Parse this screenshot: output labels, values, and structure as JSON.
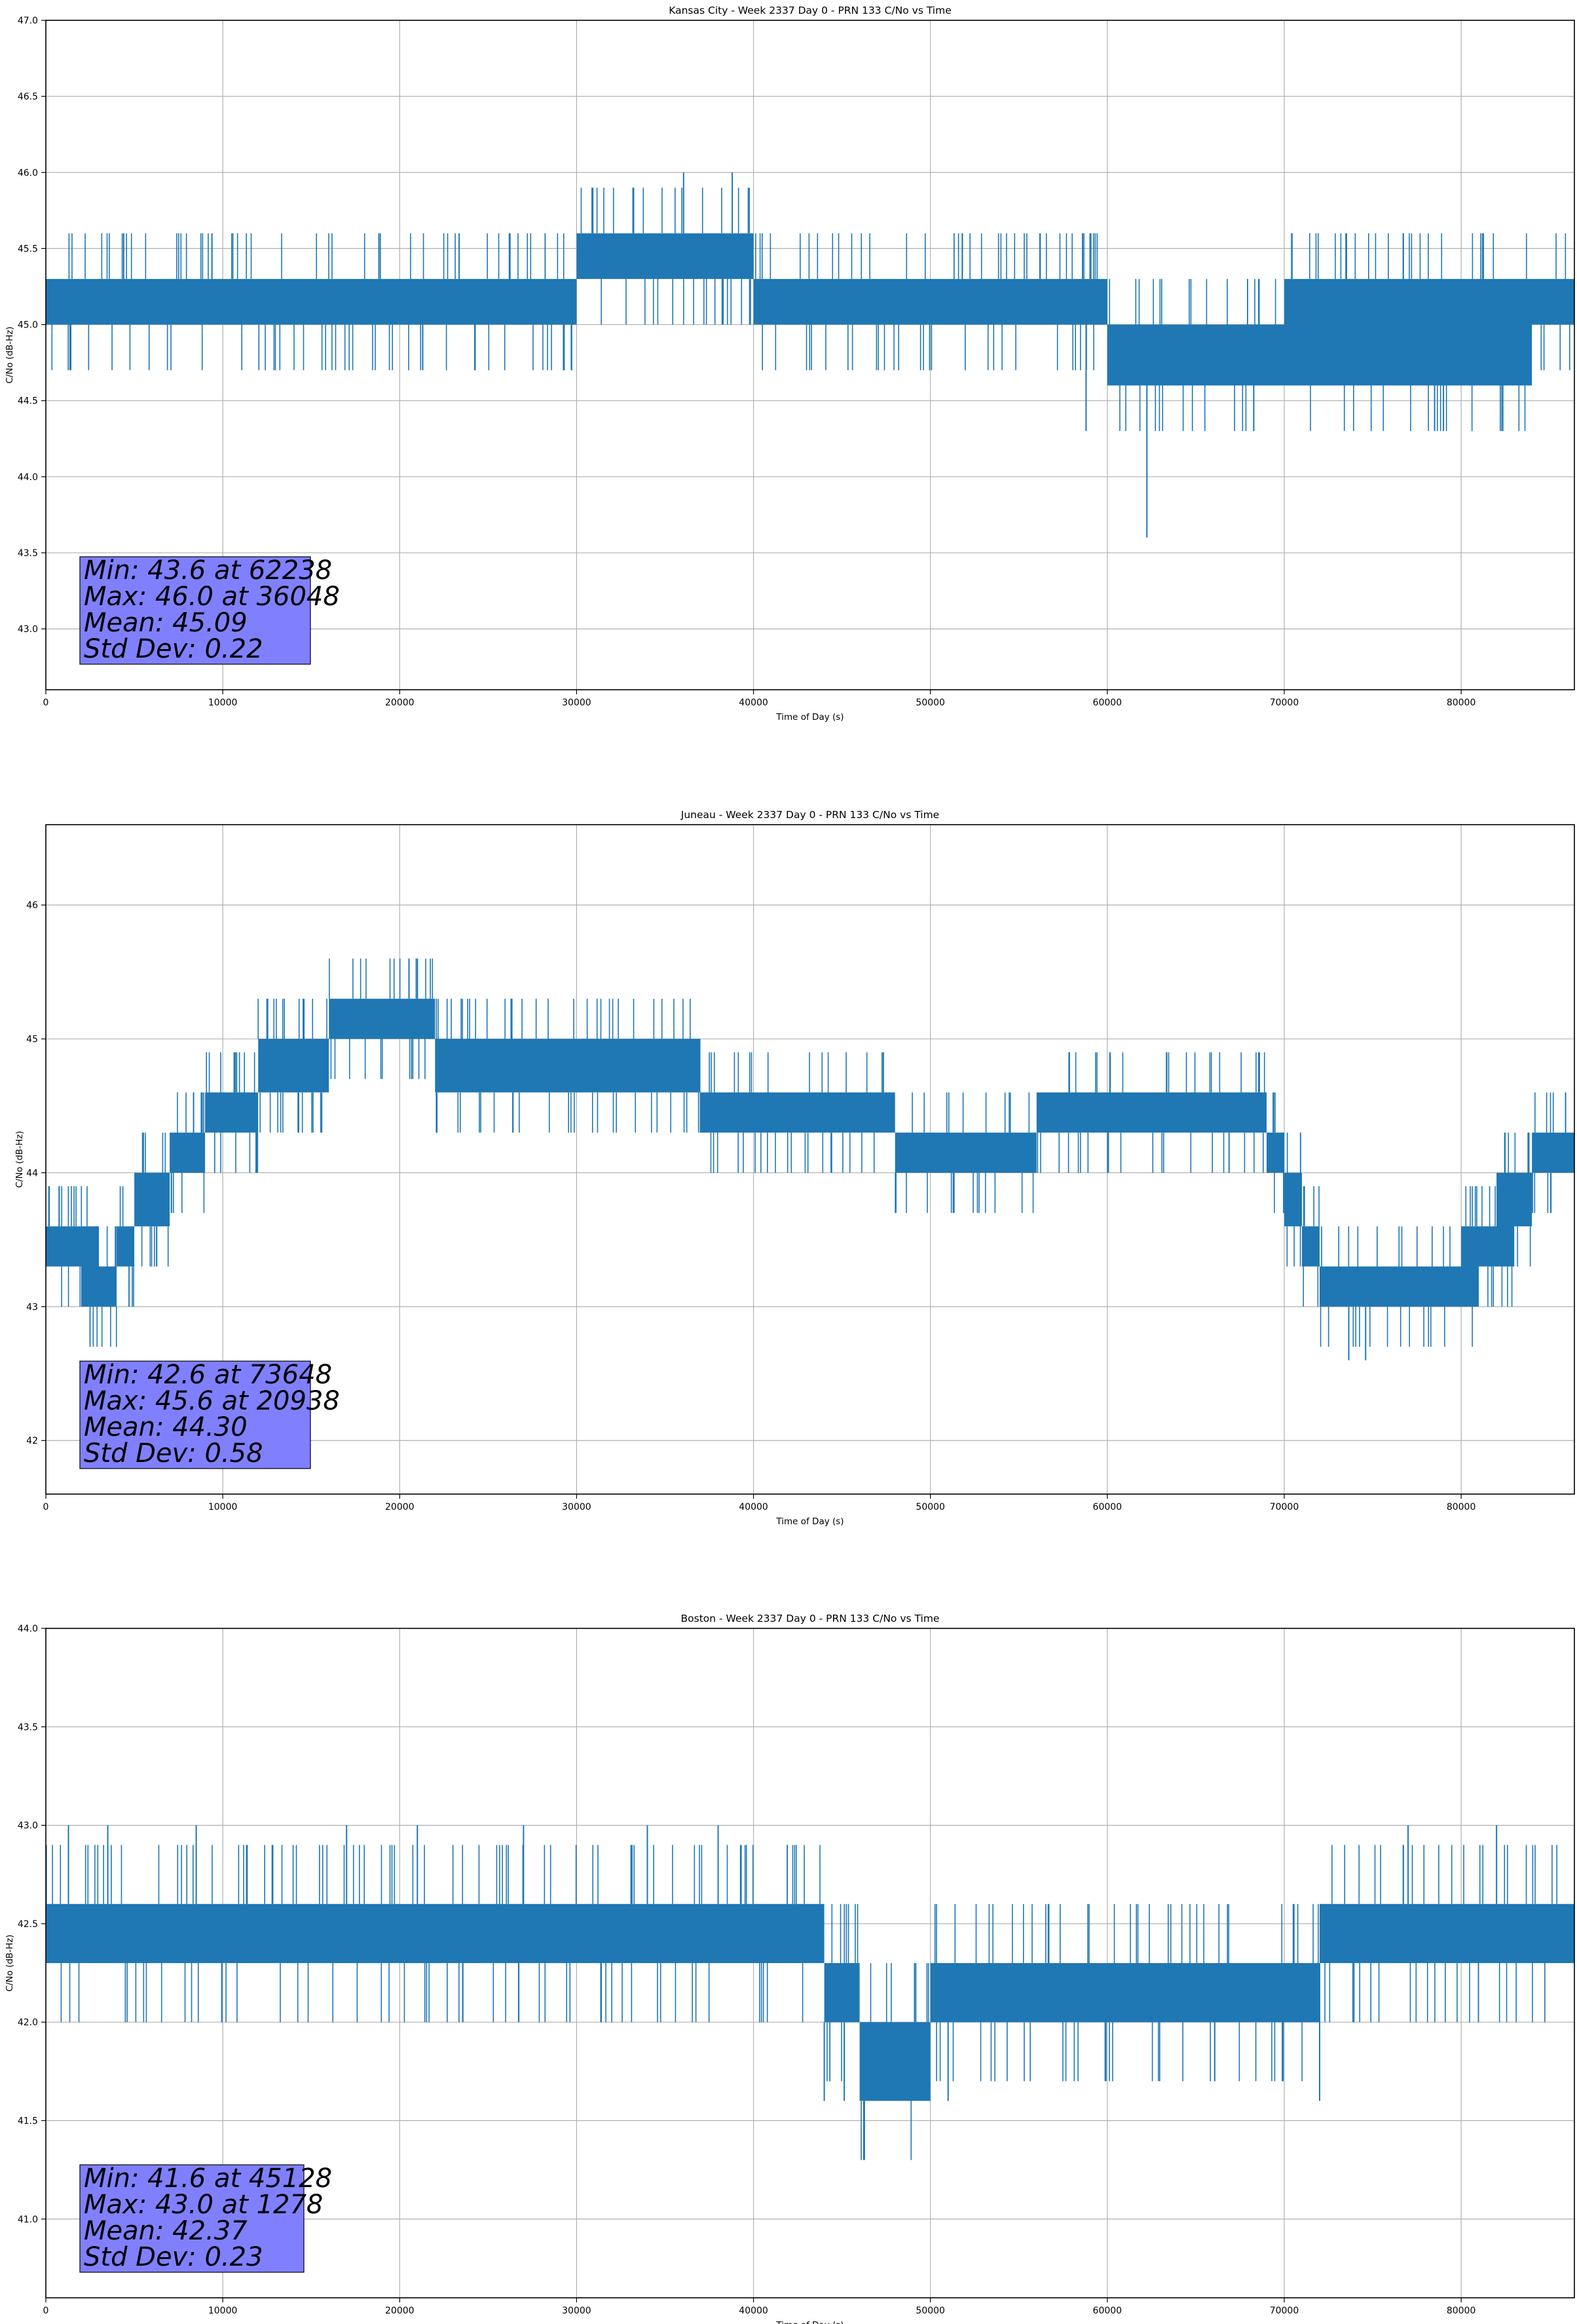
{
  "chart_data": [
    {
      "type": "line",
      "title": "Kansas City - Week 2337 Day 0 - PRN 133 C/No vs Time",
      "xlabel": "Time of Day (s)",
      "ylabel": "C/No (dB-Hz)",
      "xlim": [
        0,
        86400
      ],
      "ylim": [
        42.6,
        47.0
      ],
      "xticks": [
        0,
        10000,
        20000,
        30000,
        40000,
        50000,
        60000,
        70000,
        80000
      ],
      "yticks": [
        43.0,
        43.5,
        44.0,
        44.5,
        45.0,
        45.5,
        46.0,
        46.5,
        47.0
      ],
      "ytick_decimals": 1,
      "grid": true,
      "color": "#1f77b4",
      "series": [
        {
          "x": [
            0,
            2000,
            4000,
            6000,
            8000,
            10000,
            12000,
            14000,
            16000,
            18000,
            20000,
            22000,
            24000,
            26000,
            28000,
            29000,
            30000,
            32000,
            34000,
            36000,
            38000,
            39000,
            40000,
            42000,
            44000,
            46000,
            48000,
            50000,
            52000,
            54000,
            56000,
            58000,
            59000,
            60000,
            62000,
            64000,
            66000,
            68000,
            70000,
            72000,
            74000,
            76000,
            78000,
            80000,
            82000,
            84000,
            86400
          ],
          "band_low": [
            45.0,
            45.0,
            45.0,
            45.0,
            45.0,
            45.0,
            45.0,
            45.0,
            45.0,
            45.0,
            45.0,
            45.0,
            45.0,
            45.0,
            45.0,
            45.0,
            45.3,
            45.3,
            45.3,
            45.3,
            45.3,
            45.3,
            45.0,
            45.0,
            45.0,
            45.0,
            45.0,
            45.0,
            45.0,
            45.0,
            45.0,
            45.0,
            45.0,
            44.6,
            44.6,
            44.6,
            44.6,
            44.6,
            44.6,
            44.6,
            44.6,
            44.6,
            44.6,
            44.6,
            44.6,
            45.0,
            45.0
          ],
          "band_high": [
            45.3,
            45.3,
            45.3,
            45.3,
            45.3,
            45.3,
            45.3,
            45.3,
            45.3,
            45.3,
            45.3,
            45.3,
            45.3,
            45.3,
            45.3,
            45.3,
            45.6,
            45.6,
            45.6,
            45.6,
            45.6,
            45.6,
            45.3,
            45.3,
            45.3,
            45.3,
            45.3,
            45.3,
            45.3,
            45.3,
            45.3,
            45.3,
            45.3,
            45.0,
            45.0,
            45.0,
            45.0,
            45.0,
            45.3,
            45.3,
            45.3,
            45.3,
            45.3,
            45.3,
            45.3,
            45.3,
            45.3
          ]
        }
      ],
      "extremes": [
        [
          4400,
          45.6
        ],
        [
          18900,
          45.6
        ],
        [
          36048,
          46.0
        ],
        [
          38800,
          46.0
        ],
        [
          51800,
          45.6
        ],
        [
          58600,
          45.6
        ],
        [
          58800,
          44.3
        ],
        [
          62238,
          43.6
        ],
        [
          78500,
          44.3
        ],
        [
          79000,
          44.3
        ]
      ],
      "stats_box": {
        "min_line": "Min: 43.6 at 62238",
        "max_line": "Max: 46.0 at 36048",
        "mean_line": "Mean: 45.09",
        "std_line": "Std Dev: 0.22"
      }
    },
    {
      "type": "line",
      "title": "Juneau - Week 2337 Day 0 - PRN 133 C/No vs Time",
      "xlabel": "Time of Day (s)",
      "ylabel": "C/No (dB-Hz)",
      "xlim": [
        0,
        86400
      ],
      "ylim": [
        41.6,
        46.6
      ],
      "xticks": [
        0,
        10000,
        20000,
        30000,
        40000,
        50000,
        60000,
        70000,
        80000
      ],
      "yticks": [
        42,
        43,
        44,
        45,
        46
      ],
      "ytick_decimals": 0,
      "grid": true,
      "color": "#1f77b4",
      "series": [
        {
          "x": [
            0,
            1000,
            2000,
            3000,
            4000,
            5000,
            6000,
            7000,
            8000,
            9000,
            10000,
            11000,
            12000,
            13000,
            14000,
            15000,
            16000,
            18000,
            20000,
            21000,
            22000,
            23000,
            24000,
            26000,
            28000,
            30000,
            32000,
            34000,
            36000,
            37000,
            38000,
            40000,
            42000,
            44000,
            46000,
            48000,
            50000,
            52000,
            54000,
            56000,
            58000,
            60000,
            62000,
            64000,
            66000,
            68000,
            69000,
            70000,
            71000,
            72000,
            74000,
            76000,
            78000,
            80000,
            81000,
            82000,
            83000,
            84000,
            85000,
            86400
          ],
          "band_low": [
            43.3,
            43.3,
            43.0,
            43.0,
            43.3,
            43.6,
            43.6,
            44.0,
            44.0,
            44.3,
            44.3,
            44.3,
            44.6,
            44.6,
            44.6,
            44.6,
            45.0,
            45.0,
            45.0,
            45.0,
            44.6,
            44.6,
            44.6,
            44.6,
            44.6,
            44.6,
            44.6,
            44.6,
            44.6,
            44.3,
            44.3,
            44.3,
            44.3,
            44.3,
            44.3,
            44.0,
            44.0,
            44.0,
            44.0,
            44.3,
            44.3,
            44.3,
            44.3,
            44.3,
            44.3,
            44.3,
            44.0,
            43.6,
            43.3,
            43.0,
            43.0,
            43.0,
            43.0,
            43.0,
            43.3,
            43.3,
            43.6,
            44.0,
            44.0,
            44.0
          ],
          "band_high": [
            43.6,
            43.6,
            43.6,
            43.3,
            43.6,
            44.0,
            44.0,
            44.3,
            44.3,
            44.6,
            44.6,
            44.6,
            45.0,
            45.0,
            45.0,
            45.0,
            45.3,
            45.3,
            45.3,
            45.3,
            45.0,
            45.0,
            45.0,
            45.0,
            45.0,
            45.0,
            45.0,
            45.0,
            45.0,
            44.6,
            44.6,
            44.6,
            44.6,
            44.6,
            44.6,
            44.3,
            44.3,
            44.3,
            44.3,
            44.6,
            44.6,
            44.6,
            44.6,
            44.6,
            44.6,
            44.6,
            44.3,
            44.0,
            43.6,
            43.3,
            43.3,
            43.3,
            43.3,
            43.6,
            43.6,
            44.0,
            44.0,
            44.3,
            44.3,
            44.3
          ]
        }
      ],
      "extremes": [
        [
          20938,
          45.6
        ],
        [
          26300,
          45.3
        ],
        [
          73648,
          42.6
        ],
        [
          74600,
          42.6
        ]
      ],
      "stats_box": {
        "min_line": "Min: 42.6 at 73648",
        "max_line": "Max: 45.6 at 20938",
        "mean_line": "Mean: 44.30",
        "std_line": "Std Dev: 0.58"
      }
    },
    {
      "type": "line",
      "title": "Boston - Week 2337 Day 0 - PRN 133 C/No vs Time",
      "xlabel": "Time of Day (s)",
      "ylabel": "C/No (dB-Hz)",
      "xlim": [
        0,
        86400
      ],
      "ylim": [
        40.6,
        44.0
      ],
      "xticks": [
        0,
        10000,
        20000,
        30000,
        40000,
        50000,
        60000,
        70000,
        80000
      ],
      "yticks": [
        41.0,
        41.5,
        42.0,
        42.5,
        43.0,
        43.5,
        44.0
      ],
      "ytick_decimals": 1,
      "grid": true,
      "color": "#1f77b4",
      "series": [
        {
          "x": [
            0,
            2000,
            4000,
            6000,
            8000,
            10000,
            12000,
            14000,
            16000,
            18000,
            20000,
            22000,
            24000,
            26000,
            28000,
            30000,
            32000,
            34000,
            36000,
            38000,
            40000,
            42000,
            44000,
            45000,
            46000,
            48000,
            50000,
            52000,
            54000,
            56000,
            58000,
            60000,
            62000,
            64000,
            66000,
            68000,
            70000,
            72000,
            74000,
            76000,
            78000,
            80000,
            82000,
            84000,
            86400
          ],
          "band_low": [
            42.3,
            42.3,
            42.3,
            42.3,
            42.3,
            42.3,
            42.3,
            42.3,
            42.3,
            42.3,
            42.3,
            42.3,
            42.3,
            42.3,
            42.3,
            42.3,
            42.3,
            42.3,
            42.3,
            42.3,
            42.3,
            42.3,
            42.0,
            42.0,
            41.6,
            41.6,
            42.0,
            42.0,
            42.0,
            42.0,
            42.0,
            42.0,
            42.0,
            42.0,
            42.0,
            42.0,
            42.0,
            42.3,
            42.3,
            42.3,
            42.3,
            42.3,
            42.3,
            42.3,
            42.3
          ],
          "band_high": [
            42.6,
            42.6,
            42.6,
            42.6,
            42.6,
            42.6,
            42.6,
            42.6,
            42.6,
            42.6,
            42.6,
            42.6,
            42.6,
            42.6,
            42.6,
            42.6,
            42.6,
            42.6,
            42.6,
            42.6,
            42.6,
            42.6,
            42.3,
            42.3,
            42.0,
            42.0,
            42.3,
            42.3,
            42.3,
            42.3,
            42.3,
            42.3,
            42.3,
            42.3,
            42.3,
            42.3,
            42.3,
            42.6,
            42.6,
            42.6,
            42.6,
            42.6,
            42.6,
            42.6,
            42.6
          ]
        }
      ],
      "extremes": [
        [
          1278,
          43.0
        ],
        [
          3500,
          43.0
        ],
        [
          8500,
          43.0
        ],
        [
          17000,
          43.0
        ],
        [
          21000,
          43.0
        ],
        [
          27000,
          43.0
        ],
        [
          34000,
          43.0
        ],
        [
          38000,
          43.0
        ],
        [
          44000,
          41.6
        ],
        [
          45128,
          41.6
        ],
        [
          48500,
          41.6
        ],
        [
          51000,
          41.6
        ],
        [
          72000,
          41.6
        ],
        [
          77000,
          43.0
        ],
        [
          82000,
          43.0
        ]
      ],
      "stats_box": {
        "min_line": "Min: 41.6 at 45128",
        "max_line": "Max: 43.0 at 1278",
        "mean_line": "Mean: 42.37",
        "std_line": "Std Dev: 0.23"
      }
    }
  ]
}
